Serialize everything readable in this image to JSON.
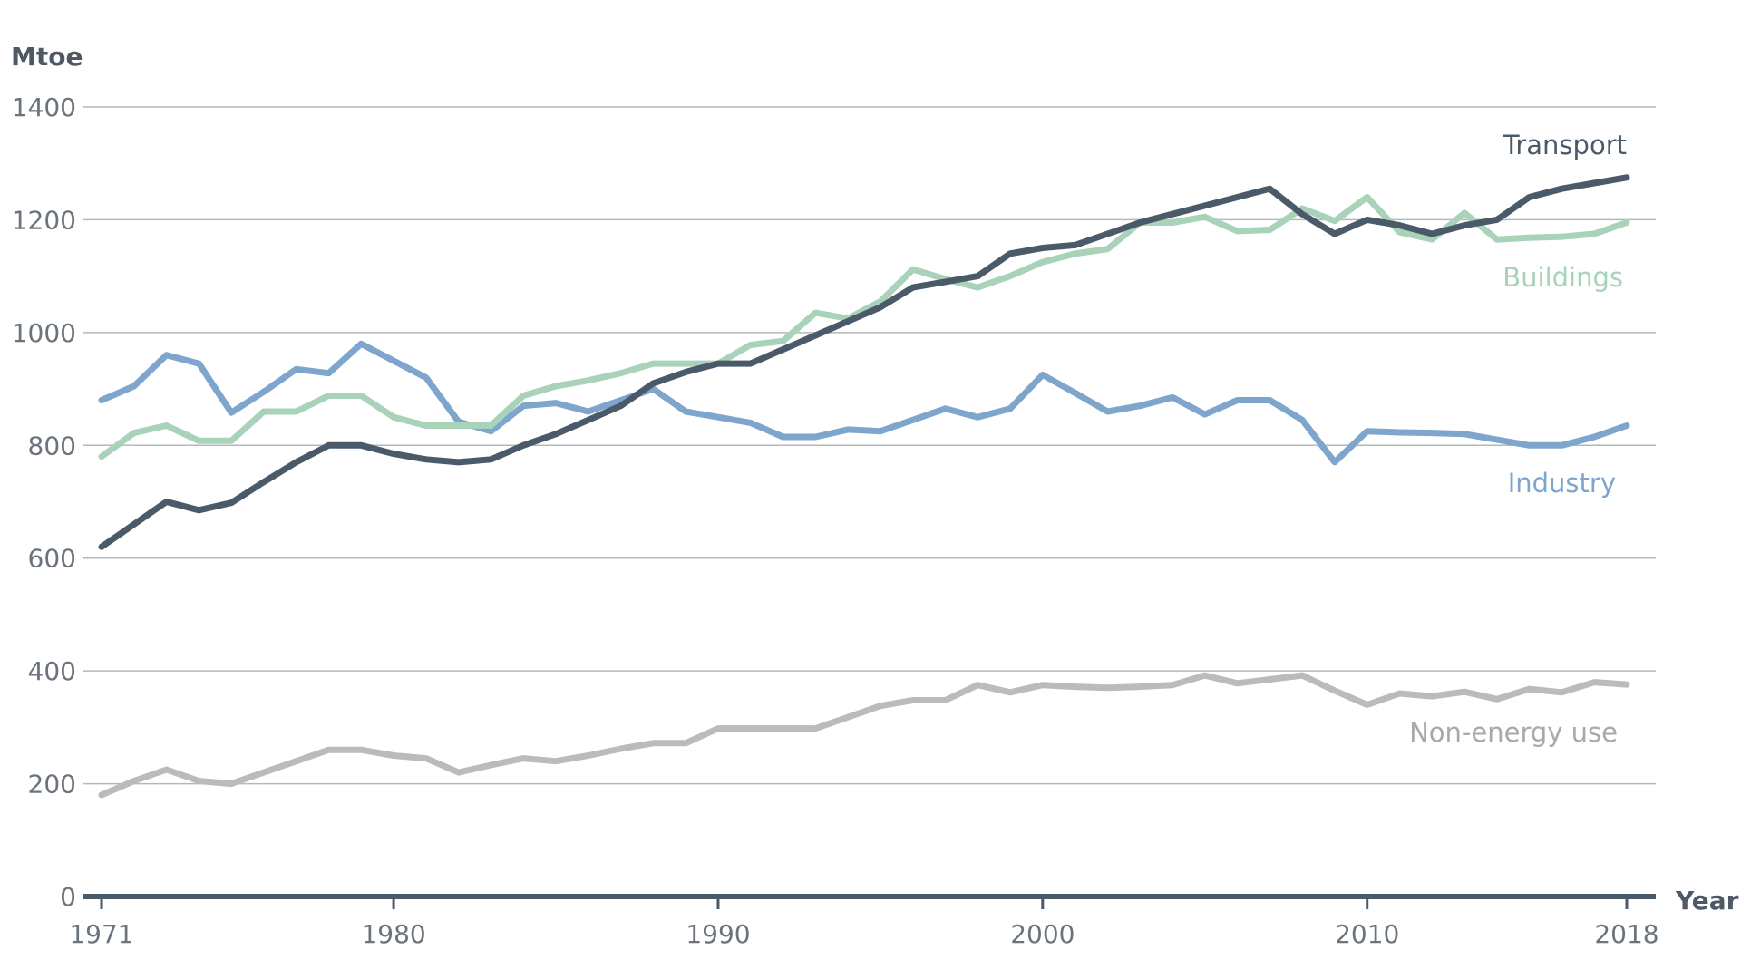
{
  "chart_data": {
    "type": "line",
    "ylabel": "Mtoe",
    "xlabel": "Year",
    "ylim": [
      0,
      1400
    ],
    "yticks": [
      0,
      200,
      400,
      600,
      800,
      1000,
      1200,
      1400
    ],
    "xlim": [
      1971,
      2018
    ],
    "xticks": [
      1971,
      1980,
      1990,
      2000,
      2010,
      2018
    ],
    "x_tick_labels": [
      "1971",
      "1980",
      "1990",
      "2000",
      "2010",
      "2018"
    ],
    "y_tick_labels": [
      "0",
      "200",
      "400",
      "600",
      "800",
      "1000",
      "1200",
      "1400"
    ],
    "grid": true,
    "x": [
      1971,
      1972,
      1973,
      1974,
      1975,
      1976,
      1977,
      1978,
      1979,
      1980,
      1981,
      1982,
      1983,
      1984,
      1985,
      1986,
      1987,
      1988,
      1989,
      1990,
      1991,
      1992,
      1993,
      1994,
      1995,
      1996,
      1997,
      1998,
      1999,
      2000,
      2001,
      2002,
      2003,
      2004,
      2005,
      2006,
      2007,
      2008,
      2009,
      2010,
      2011,
      2012,
      2013,
      2014,
      2015,
      2016,
      2017,
      2018
    ],
    "series": [
      {
        "name": "Transport",
        "color": "#4a5a68",
        "values": [
          620,
          660,
          700,
          685,
          698,
          735,
          770,
          800,
          800,
          785,
          775,
          770,
          775,
          800,
          820,
          845,
          870,
          910,
          930,
          945,
          945,
          970,
          995,
          1020,
          1045,
          1080,
          1090,
          1100,
          1140,
          1150,
          1155,
          1175,
          1195,
          1210,
          1225,
          1240,
          1255,
          1210,
          1175,
          1200,
          1190,
          1175,
          1190,
          1200,
          1240,
          1255,
          1265,
          1275
        ]
      },
      {
        "name": "Buildings",
        "color": "#a8d3b8",
        "values": [
          780,
          822,
          835,
          808,
          808,
          860,
          860,
          888,
          888,
          850,
          835,
          835,
          835,
          888,
          905,
          915,
          928,
          945,
          945,
          945,
          978,
          985,
          1035,
          1025,
          1055,
          1112,
          1095,
          1080,
          1100,
          1125,
          1140,
          1148,
          1195,
          1195,
          1205,
          1180,
          1182,
          1220,
          1198,
          1240,
          1178,
          1165,
          1212,
          1165,
          1168,
          1170,
          1175,
          1195
        ]
      },
      {
        "name": "Industry",
        "color": "#7ea5cc",
        "values": [
          880,
          905,
          960,
          945,
          858,
          895,
          935,
          928,
          980,
          950,
          920,
          842,
          825,
          870,
          875,
          860,
          880,
          900,
          860,
          850,
          840,
          815,
          815,
          828,
          825,
          845,
          865,
          850,
          865,
          925,
          893,
          860,
          870,
          885,
          855,
          880,
          880,
          845,
          770,
          825,
          823,
          822,
          820,
          810,
          800,
          800,
          815,
          835
        ]
      },
      {
        "name": "Non-energy use",
        "color": "#b8bcbf",
        "values": [
          180,
          205,
          225,
          205,
          200,
          220,
          240,
          260,
          260,
          250,
          245,
          220,
          233,
          245,
          240,
          250,
          262,
          272,
          272,
          298,
          298,
          298,
          298,
          318,
          338,
          348,
          348,
          375,
          362,
          375,
          372,
          370,
          372,
          375,
          392,
          378,
          385,
          392,
          365,
          340,
          360,
          355,
          363,
          350,
          368,
          362,
          380,
          376
        ]
      }
    ],
    "annotations": {
      "transport": "Transport",
      "buildings": "Buildings",
      "industry": "Industry",
      "non_energy": "Non-energy use"
    }
  }
}
